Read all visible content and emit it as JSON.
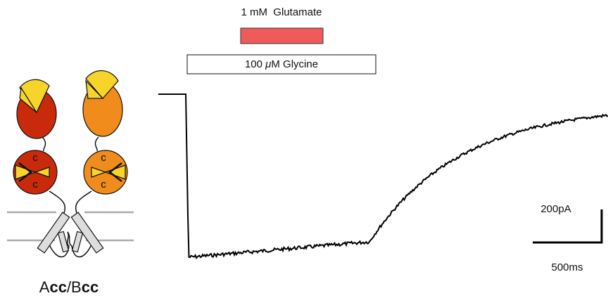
{
  "stimuli": {
    "glutamate": "1 mM  Glutamate",
    "glycine": {
      "pre": "100 ",
      "mu": "μ",
      "post": "M Glycine"
    }
  },
  "scale_bar": {
    "current": "200pA",
    "time": "500ms"
  },
  "construct": {
    "labels": [
      "c",
      "c",
      "c",
      "c"
    ],
    "name": {
      "a": "A",
      "a_sub": "cc",
      "b": "/B",
      "b_sub": "cc"
    }
  }
}
